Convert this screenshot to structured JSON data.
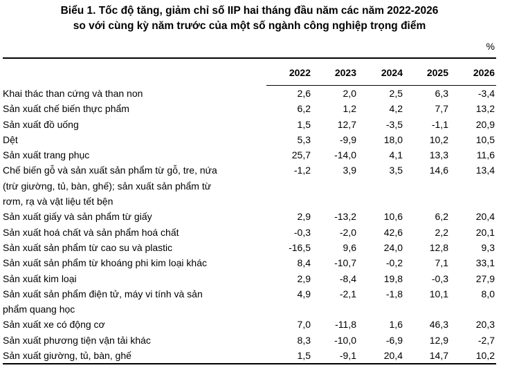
{
  "page": {
    "background_color": "#ffffff",
    "text_color": "#000000"
  },
  "chart_data": {
    "type": "table",
    "title": "Biểu 1. Tốc độ tăng, giảm chỉ số IIP hai tháng đầu năm các năm 2022-2026\nso với cùng kỳ năm trước của một số ngành công nghiệp trọng điểm",
    "unit": "%",
    "columns": [
      "2022",
      "2023",
      "2024",
      "2025",
      "2026"
    ],
    "rows": [
      {
        "label": "Khai thác than cứng và than non",
        "values": [
          "2,6",
          "2,0",
          "2,5",
          "6,3",
          "-3,4"
        ]
      },
      {
        "label": "Sản xuất chế biến thực phẩm",
        "values": [
          "6,2",
          "1,2",
          "4,2",
          "7,7",
          "13,2"
        ]
      },
      {
        "label": "Sản xuất đồ uống",
        "values": [
          "1,5",
          "12,7",
          "-3,5",
          "-1,1",
          "20,9"
        ]
      },
      {
        "label": "Dệt",
        "values": [
          "5,3",
          "-9,9",
          "18,0",
          "10,2",
          "10,5"
        ]
      },
      {
        "label": "Sản xuất trang phục",
        "values": [
          "25,7",
          "-14,0",
          "4,1",
          "13,3",
          "11,6"
        ]
      },
      {
        "label": "Chế biến gỗ và sản xuất sản phẩm từ gỗ, tre, nứa\n(trừ giường, tủ, bàn, ghế); sản xuất sản phẩm từ\nrơm, rạ và vật liệu tết bện",
        "values": [
          "-1,2",
          "3,9",
          "3,5",
          "14,6",
          "13,4"
        ]
      },
      {
        "label": "Sản xuất giấy và sản phẩm từ giấy",
        "values": [
          "2,9",
          "-13,2",
          "10,6",
          "6,2",
          "20,4"
        ]
      },
      {
        "label": "Sản xuất hoá chất và sản phẩm hoá chất",
        "values": [
          "-0,3",
          "-2,0",
          "42,6",
          "2,2",
          "20,1"
        ]
      },
      {
        "label": "Sản xuất sản phẩm từ cao su và plastic",
        "values": [
          "-16,5",
          "9,6",
          "24,0",
          "12,8",
          "9,3"
        ]
      },
      {
        "label": "Sản xuất sản phẩm từ khoáng phi kim loại khác",
        "values": [
          "8,4",
          "-10,7",
          "-0,2",
          "7,1",
          "33,1"
        ]
      },
      {
        "label": "Sản xuất kim loại",
        "values": [
          "2,9",
          "-8,4",
          "19,8",
          "-0,3",
          "27,9"
        ]
      },
      {
        "label": "Sản xuất sản phẩm điện tử, máy vi tính và sản\nphẩm quang học",
        "values": [
          "4,9",
          "-2,1",
          "-1,8",
          "10,1",
          "8,0"
        ]
      },
      {
        "label": "Sản xuất xe có động cơ",
        "values": [
          "7,0",
          "-11,8",
          "1,6",
          "46,3",
          "20,3"
        ]
      },
      {
        "label": "Sản xuất phương tiện vận tải khác",
        "values": [
          "8,3",
          "-10,0",
          "-6,9",
          "12,9",
          "-2,7"
        ]
      },
      {
        "label": "Sản xuất giường, tủ, bàn, ghế",
        "values": [
          "1,5",
          "-9,1",
          "20,4",
          "14,7",
          "10,2"
        ]
      }
    ]
  }
}
